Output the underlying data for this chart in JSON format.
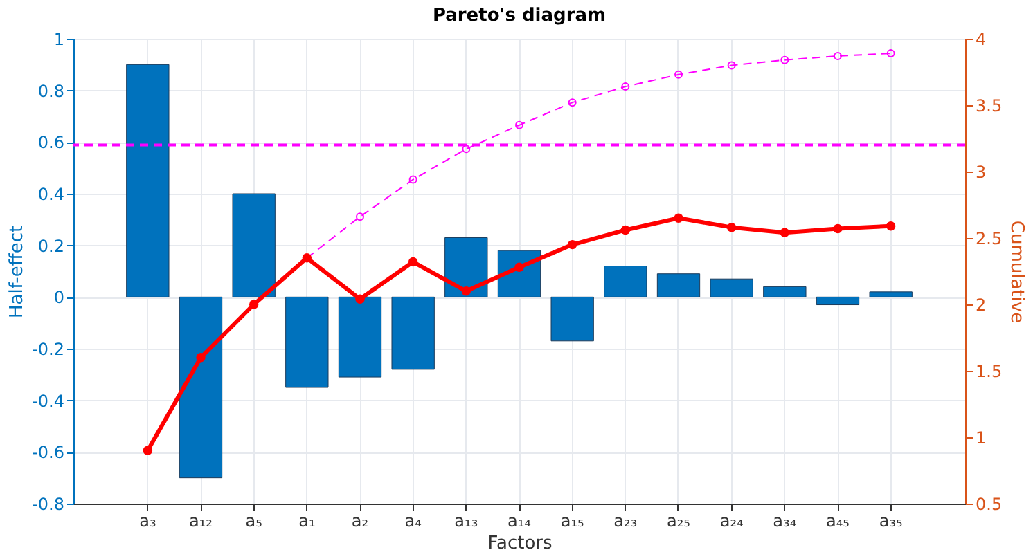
{
  "chart_data": {
    "type": "bar",
    "title": "Pareto's diagram",
    "xlabel": "Factors",
    "ylabel": "Half-effect",
    "y2label": "Cumulative",
    "categories": [
      "a₃",
      "a₁₂",
      "a₅",
      "a₁",
      "a₂",
      "a₄",
      "a₁₃",
      "a₁₄",
      "a₁₅",
      "a₂₃",
      "a₂₅",
      "a₂₄",
      "a₃₄",
      "a₄₅",
      "a₃₅"
    ],
    "series": [
      {
        "color": "#0072bd",
        "values": [
          0.9,
          -0.7,
          0.4,
          -0.35,
          -0.31,
          -0.28,
          0.23,
          0.18,
          -0.17,
          0.12,
          0.09,
          0.07,
          0.04,
          -0.03,
          0.02
        ]
      },
      {
        "type": "line",
        "axis": "y2",
        "color": "#ff00ff",
        "line_style": "dashed",
        "marker": "circle",
        "values": [
          null,
          null,
          null,
          2.35,
          2.66,
          2.94,
          3.17,
          3.35,
          3.52,
          3.64,
          3.73,
          3.8,
          3.84,
          3.87,
          3.89
        ]
      },
      {
        "type": "line",
        "axis": "y2",
        "color": "#ff0000",
        "line_style": "solid",
        "marker": "circle",
        "values": [
          0.9,
          1.6,
          2.0,
          2.35,
          2.04,
          2.32,
          2.1,
          2.28,
          2.45,
          2.56,
          2.65,
          2.58,
          2.54,
          2.57,
          2.59
        ]
      }
    ],
    "ylim": [
      -0.8,
      1
    ],
    "yticks": [
      -0.8,
      -0.6,
      -0.4,
      -0.2,
      0,
      0.2,
      0.4,
      0.6,
      0.8,
      1
    ],
    "y2lim": [
      0.5,
      4
    ],
    "y2ticks": [
      0.5,
      1,
      1.5,
      2,
      2.5,
      3,
      3.5,
      4
    ],
    "ref_lines": [
      {
        "axis": "y2",
        "value": 3.2,
        "color": "#ff00ff",
        "line_style": "dashed"
      }
    ],
    "grid": true
  }
}
